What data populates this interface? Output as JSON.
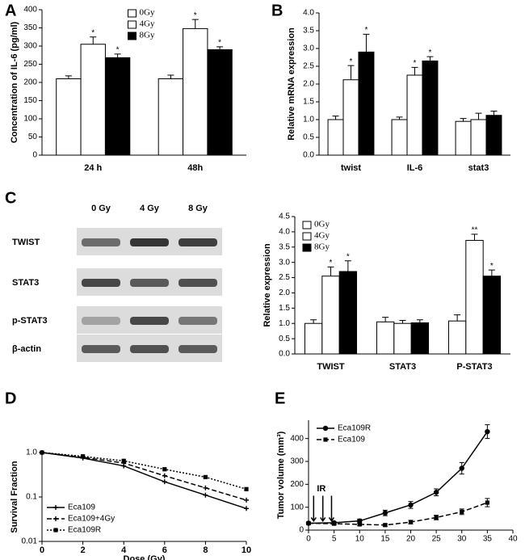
{
  "chart_data": [
    {
      "type": "bar",
      "panel": "A",
      "ylabel": "Concentration of IL-6 (pg/ml)",
      "categories": [
        "24 h",
        "48h"
      ],
      "series": [
        {
          "name": "0Gy",
          "color": "#ffffff",
          "values": [
            210,
            210
          ],
          "errors": [
            8,
            10
          ],
          "significance": [
            null,
            null
          ]
        },
        {
          "name": "4Gy",
          "color": "#ffffff",
          "values": [
            305,
            348
          ],
          "errors": [
            20,
            25
          ],
          "significance": [
            "*",
            "*"
          ]
        },
        {
          "name": "8Gy",
          "color": "#000000",
          "values": [
            268,
            290
          ],
          "errors": [
            10,
            8
          ],
          "significance": [
            "*",
            "*"
          ]
        }
      ],
      "ylim": [
        0,
        400
      ],
      "yticks": [
        0,
        50,
        100,
        150,
        200,
        250,
        300,
        350,
        400
      ],
      "legend": "upper center"
    },
    {
      "type": "bar",
      "panel": "B",
      "ylabel": "Relative mRNA expression",
      "categories": [
        "twist",
        "IL-6",
        "stat3"
      ],
      "series": [
        {
          "color": "#ffffff",
          "values": [
            1.0,
            1.0,
            0.95
          ],
          "errors": [
            0.1,
            0.07,
            0.08
          ],
          "significance": [
            null,
            null,
            null
          ]
        },
        {
          "color": "#ffffff",
          "values": [
            2.12,
            2.25,
            1.0
          ],
          "errors": [
            0.4,
            0.22,
            0.18
          ],
          "significance": [
            "*",
            "*",
            null
          ]
        },
        {
          "color": "#000000",
          "values": [
            2.9,
            2.65,
            1.12
          ],
          "errors": [
            0.5,
            0.12,
            0.12
          ],
          "significance": [
            "*",
            "*",
            null
          ]
        }
      ],
      "ylim": [
        0,
        4
      ],
      "yticks": [
        {
          "value": 0,
          "label": "0.0"
        },
        0.5,
        {
          "value": 1,
          "label": "1.0"
        },
        1.5,
        {
          "value": 2,
          "label": "2.0"
        },
        2.5,
        {
          "value": 3,
          "label": "3.0"
        },
        3.5,
        {
          "value": 4,
          "label": "4.0"
        }
      ]
    },
    {
      "type": "blot",
      "panel": "C",
      "lanes": [
        "0 Gy",
        "4 Gy",
        "8 Gy"
      ],
      "rows": [
        "TWIST",
        "STAT3",
        "p-STAT3",
        "β-actin"
      ]
    },
    {
      "type": "bar",
      "ylabel": "Relative expression",
      "categories": [
        "TWIST",
        "STAT3",
        "P-STAT3"
      ],
      "series": [
        {
          "name": "0Gy",
          "color": "#ffffff",
          "values": [
            1.0,
            1.05,
            1.08
          ],
          "errors": [
            0.12,
            0.15,
            0.2
          ],
          "significance": [
            null,
            null,
            null
          ]
        },
        {
          "name": "4Gy",
          "color": "#ffffff",
          "values": [
            2.55,
            1.0,
            3.72
          ],
          "errors": [
            0.3,
            0.1,
            0.2
          ],
          "significance": [
            "*",
            null,
            "**"
          ]
        },
        {
          "name": "8Gy",
          "color": "#000000",
          "values": [
            2.7,
            1.02,
            2.55
          ],
          "errors": [
            0.35,
            0.1,
            0.2
          ],
          "significance": [
            "*",
            null,
            "*"
          ]
        }
      ],
      "ylim": [
        0,
        4.5
      ],
      "yticks": [
        {
          "value": 0,
          "label": "0.0"
        },
        0.5,
        {
          "value": 1,
          "label": "1.0"
        },
        1.5,
        {
          "value": 2,
          "label": "2.0"
        },
        2.5,
        {
          "value": 3,
          "label": "3.0"
        },
        3.5,
        {
          "value": 4,
          "label": "4.0"
        },
        4.5
      ],
      "legend": "upper left"
    },
    {
      "type": "line",
      "panel": "D",
      "xlabel": "Dose (Gy)",
      "ylabel": "Survival Fraction",
      "log": true,
      "x": [
        0,
        2,
        4,
        6,
        8,
        10
      ],
      "series": [
        {
          "name": "Eca109",
          "color": "#000000",
          "linestyle": "solid",
          "marker": "plus",
          "values": [
            1.0,
            0.75,
            0.5,
            0.22,
            0.11,
            0.055
          ]
        },
        {
          "name": "Eca109+4Gy",
          "color": "#000000",
          "linestyle": "dashed",
          "marker": "plus",
          "values": [
            1.0,
            0.78,
            0.58,
            0.3,
            0.16,
            0.085
          ]
        },
        {
          "name": "Eca109R",
          "color": "#000000",
          "linestyle": "dotted",
          "marker": "square",
          "values": [
            1.0,
            0.82,
            0.65,
            0.42,
            0.28,
            0.15
          ]
        }
      ],
      "xlim": [
        0,
        10
      ],
      "xticks": [
        0,
        2,
        4,
        6,
        8,
        10
      ],
      "ylim": [
        0.01,
        1
      ],
      "yticks": [
        0.01,
        0.1,
        {
          "value": 1,
          "label": "1.0"
        }
      ],
      "legend": "lower left"
    },
    {
      "type": "line",
      "panel": "E",
      "ylabel": "Tumor volume (mm³)",
      "annotation": "IR",
      "x": [
        0,
        5,
        10,
        15,
        20,
        25,
        30,
        35
      ],
      "series": [
        {
          "name": "Eca109R",
          "color": "#000000",
          "linestyle": "solid",
          "marker": "circle",
          "values": [
            30,
            32,
            40,
            75,
            110,
            165,
            270,
            430
          ],
          "errors": [
            5,
            5,
            8,
            12,
            15,
            15,
            25,
            30
          ]
        },
        {
          "name": "Eca109",
          "color": "#000000",
          "linestyle": "dashed",
          "marker": "square",
          "values": [
            30,
            28,
            25,
            22,
            35,
            55,
            80,
            120
          ],
          "errors": [
            5,
            5,
            5,
            5,
            8,
            10,
            12,
            18
          ]
        }
      ],
      "xlim": [
        0,
        40
      ],
      "xticks": [
        0,
        5,
        10,
        15,
        20,
        25,
        30,
        35,
        40
      ],
      "ylim": [
        0,
        480
      ],
      "yticks": [
        0,
        100,
        200,
        300,
        400
      ],
      "legend": "upper left"
    }
  ]
}
